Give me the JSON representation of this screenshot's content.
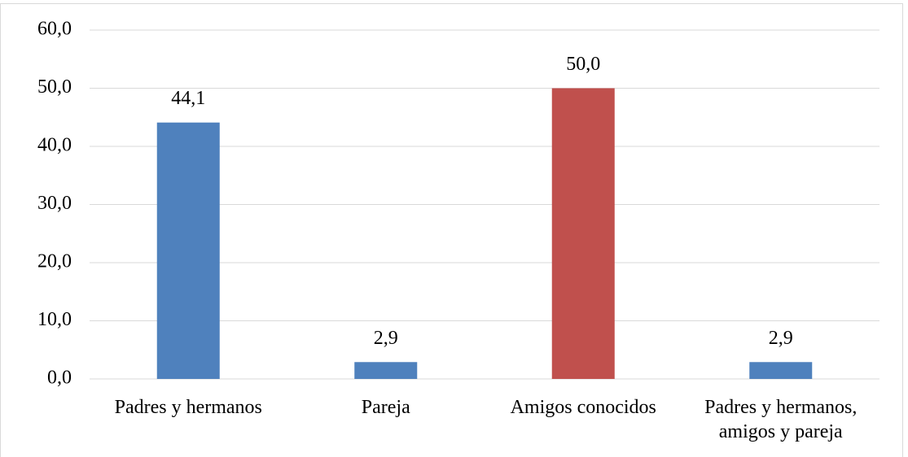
{
  "chart_data": {
    "type": "bar",
    "categories": [
      "Padres y hermanos",
      "Pareja",
      "Amigos conocidos",
      "Padres y hermanos, amigos y pareja"
    ],
    "values": [
      44.1,
      2.9,
      50.0,
      2.9
    ],
    "value_labels": [
      "44,1",
      "2,9",
      "50,0",
      "2,9"
    ],
    "colors": [
      "#4f81bd",
      "#4f81bd",
      "#c0504d",
      "#4f81bd"
    ],
    "ylim": [
      0,
      60
    ],
    "yticks": [
      {
        "value": 0,
        "label": "0,0"
      },
      {
        "value": 10,
        "label": "10,0"
      },
      {
        "value": 20,
        "label": "20,0"
      },
      {
        "value": 30,
        "label": "30,0"
      },
      {
        "value": 40,
        "label": "40,0"
      },
      {
        "value": 50,
        "label": "50,0"
      },
      {
        "value": 60,
        "label": "60,0"
      }
    ],
    "grid": true
  }
}
